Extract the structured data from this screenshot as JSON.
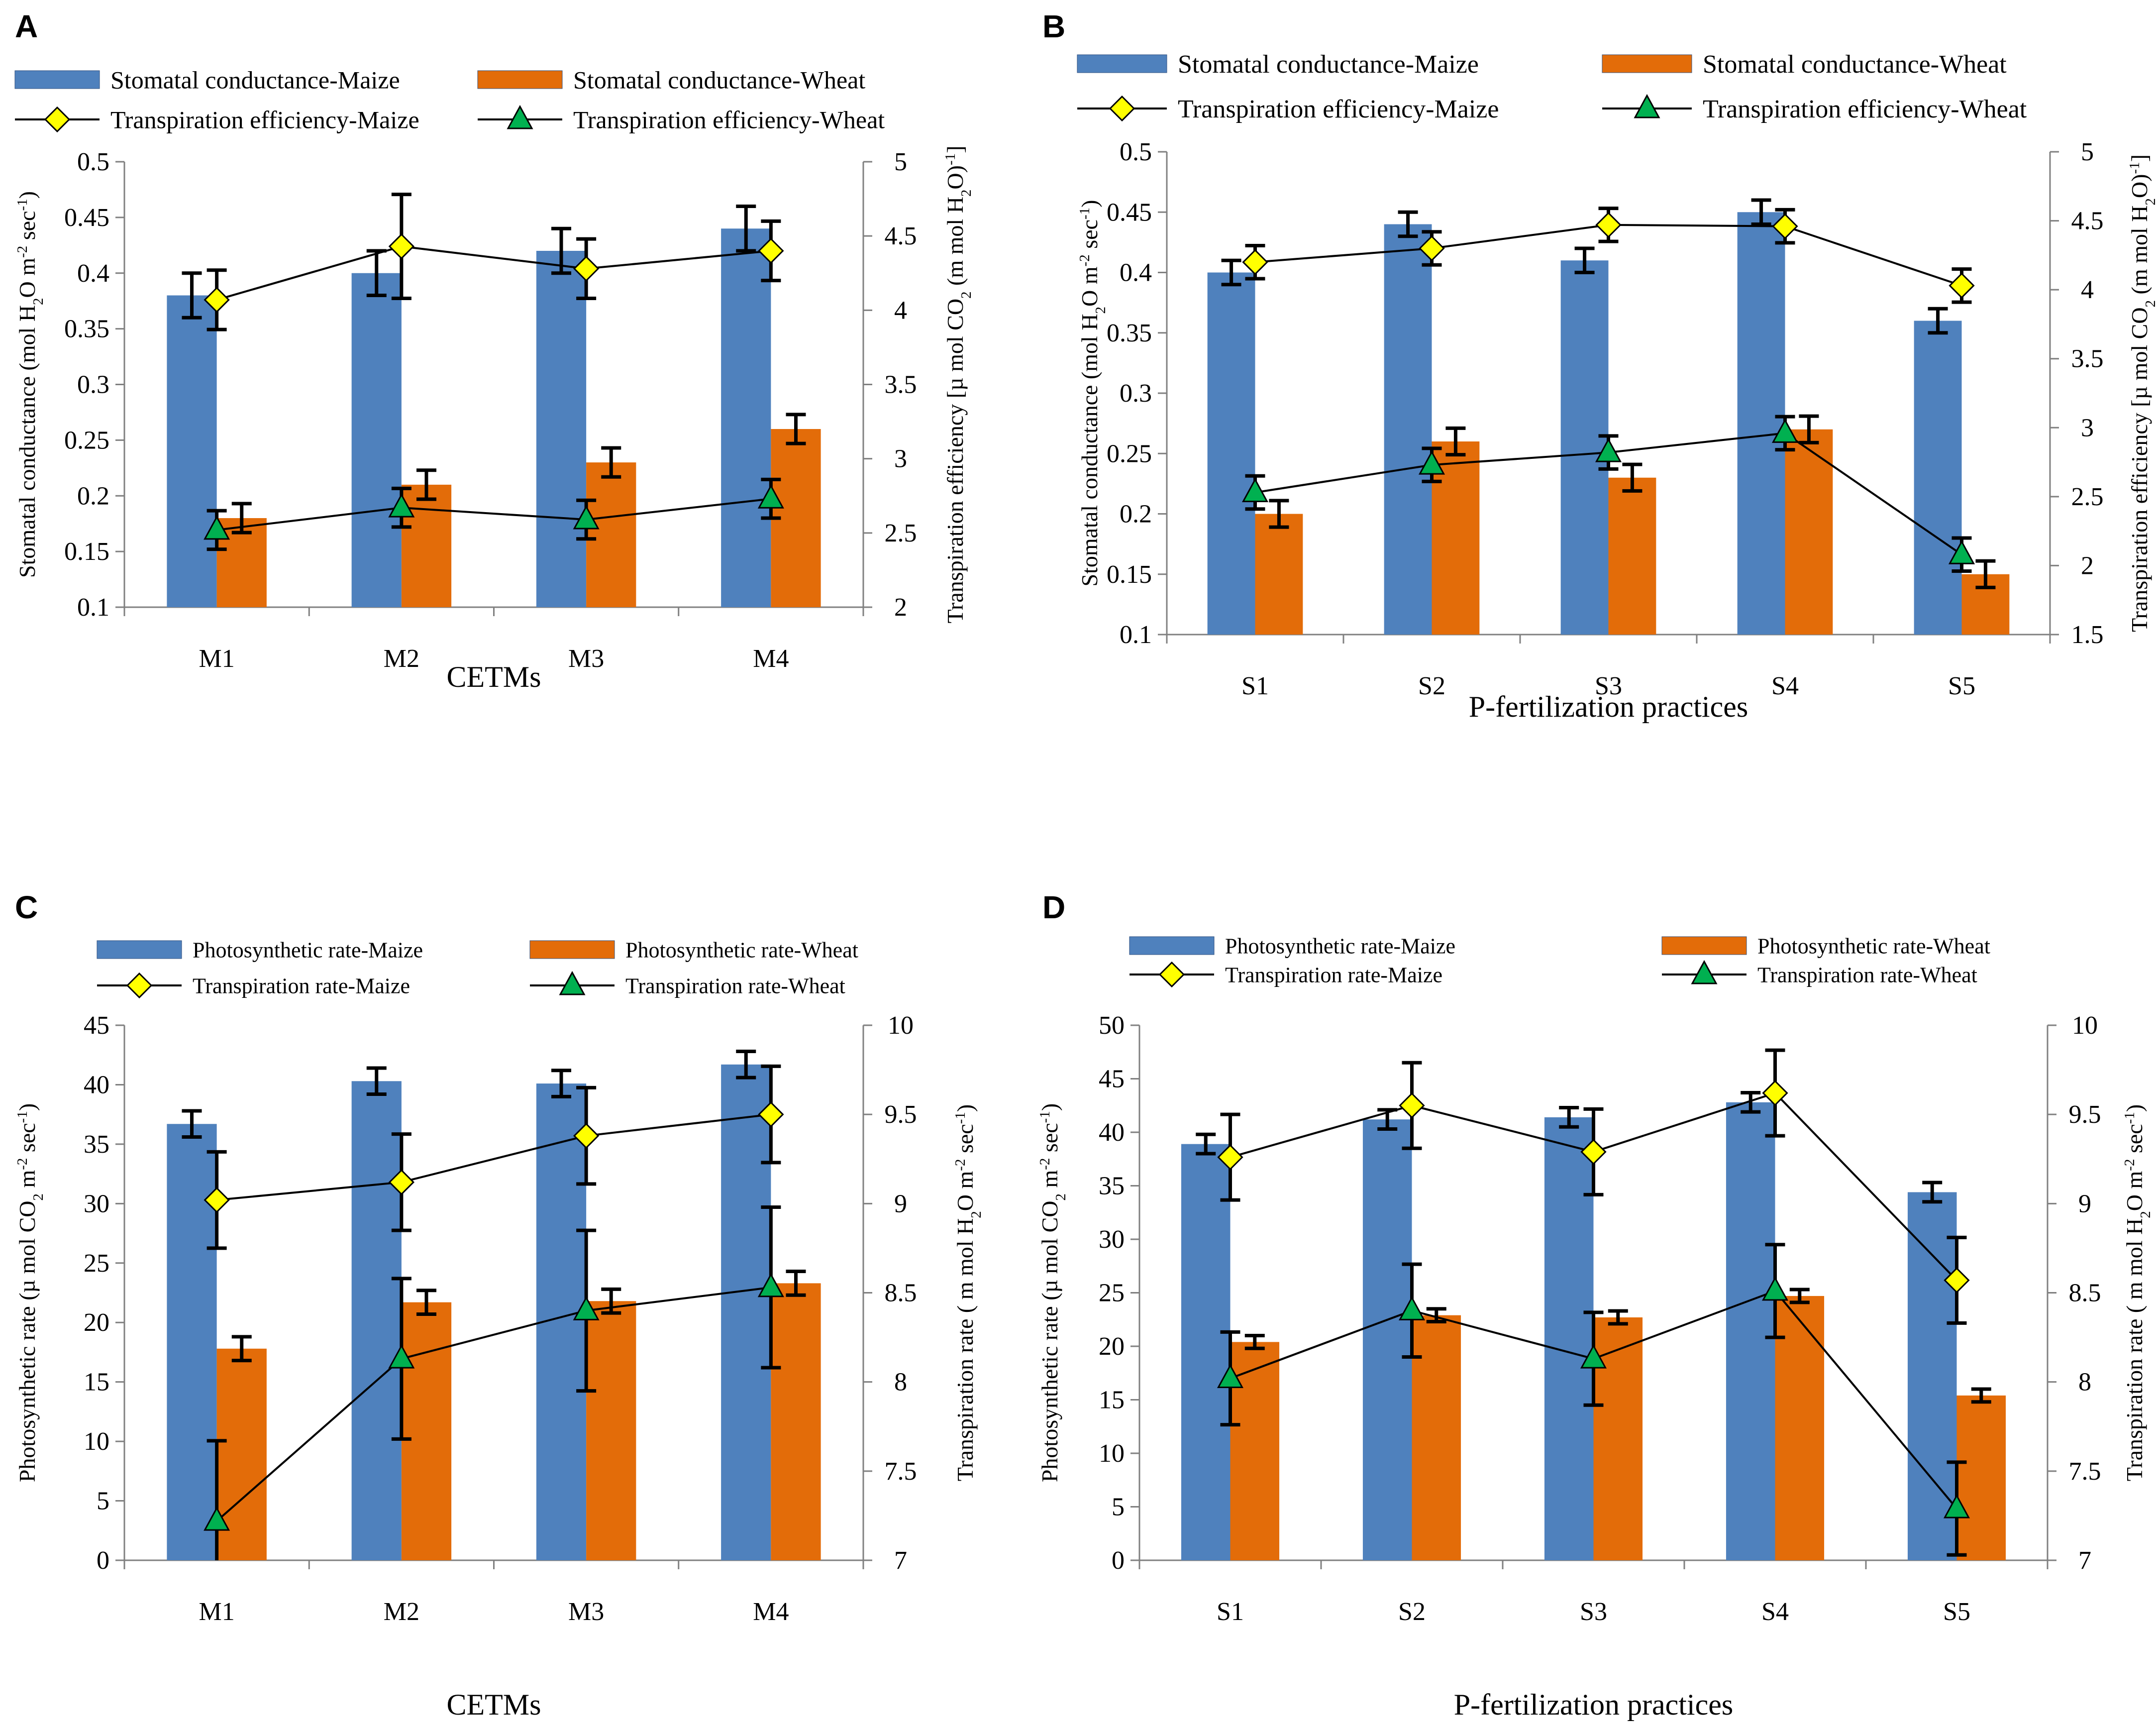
{
  "colors": {
    "maize_bar": "#4f81bd",
    "wheat_bar": "#e36c09",
    "maize_marker": "#ffff00",
    "wheat_marker": "#00b050",
    "axis": "#808080",
    "error_bar": "#000000"
  },
  "chart_data": [
    {
      "panel": "A",
      "type": "bar",
      "categories": [
        "M1",
        "M2",
        "M3",
        "M4"
      ],
      "xlabel": "CETMs",
      "ylabel": "Stomatal conductance (mol H2O m-2 sec-1)",
      "ylabel_parts": [
        "Stomatal conductance (mol H",
        "2",
        "O m",
        "-2",
        " sec",
        "-1",
        ")"
      ],
      "y2label": "Transpiration efficiency [μ mol CO2 (m mol H2O)-1]",
      "y2label_parts": [
        "Transpiration efficiency [µ mol CO",
        "2",
        " (m mol H",
        "2",
        "O)",
        "-1",
        "]"
      ],
      "ylim": [
        0.1,
        0.5
      ],
      "y2lim": [
        2,
        5
      ],
      "yticks": [
        "0.1",
        "0.15",
        "0.2",
        "0.25",
        "0.3",
        "0.35",
        "0.4",
        "0.45",
        "0.5"
      ],
      "y2ticks": [
        "2",
        "2.5",
        "3",
        "3.5",
        "4",
        "4.5",
        "5"
      ],
      "series": [
        {
          "name": "Stomatal conductance-Maize",
          "kind": "bar",
          "color": "#4f81bd",
          "values": [
            0.38,
            0.4,
            0.42,
            0.44
          ],
          "errors": [
            0.02,
            0.02,
            0.02,
            0.02
          ]
        },
        {
          "name": "Stomatal conductance-Wheat",
          "kind": "bar",
          "color": "#e36c09",
          "values": [
            0.18,
            0.21,
            0.23,
            0.26
          ],
          "errors": [
            0.013,
            0.013,
            0.013,
            0.013
          ]
        },
        {
          "name": "Transpiration efficiency-Maize",
          "kind": "line",
          "marker": "diamond",
          "axis": "right",
          "color": "#ffff00",
          "values": [
            4.07,
            4.43,
            4.28,
            4.4
          ],
          "errors": [
            0.2,
            0.35,
            0.2,
            0.2
          ]
        },
        {
          "name": "Transpiration efficiency-Wheat",
          "kind": "line",
          "marker": "triangle",
          "axis": "right",
          "color": "#00b050",
          "values": [
            2.52,
            2.67,
            2.59,
            2.73
          ],
          "errors": [
            0.13,
            0.13,
            0.13,
            0.13
          ]
        }
      ]
    },
    {
      "panel": "B",
      "type": "bar",
      "categories": [
        "S1",
        "S2",
        "S3",
        "S4",
        "S5"
      ],
      "xlabel": "P-fertilization practices",
      "ylabel": "Stomatal conductance (mol H2O m-2 sec-1)",
      "ylabel_parts": [
        "Stomatal conductance (mol H",
        "2",
        "O m",
        "-2",
        " sec",
        "-1",
        ")"
      ],
      "y2label": "Transpiration efficiency [μ mol CO2 (m mol H2O)-1]",
      "y2label_parts": [
        "Transpiration efficiency [µ mol CO",
        "2",
        " (m mol H",
        "2",
        "O)",
        "-1",
        "]"
      ],
      "ylim": [
        0.1,
        0.5
      ],
      "y2lim": [
        1.5,
        5
      ],
      "yticks": [
        "0.1",
        "0.15",
        "0.2",
        "0.25",
        "0.3",
        "0.35",
        "0.4",
        "0.45",
        "0.5"
      ],
      "y2ticks": [
        "1.5",
        "2",
        "2.5",
        "3",
        "3.5",
        "4",
        "4.5",
        "5"
      ],
      "series": [
        {
          "name": "Stomatal conductance-Maize",
          "kind": "bar",
          "color": "#4f81bd",
          "values": [
            0.4,
            0.44,
            0.41,
            0.45,
            0.36
          ],
          "errors": [
            0.01,
            0.01,
            0.01,
            0.01,
            0.01
          ]
        },
        {
          "name": "Stomatal conductance-Wheat",
          "kind": "bar",
          "color": "#e36c09",
          "values": [
            0.2,
            0.26,
            0.23,
            0.27,
            0.15
          ],
          "errors": [
            0.011,
            0.011,
            0.011,
            0.011,
            0.011
          ]
        },
        {
          "name": "Transpiration efficiency-Maize",
          "kind": "line",
          "marker": "diamond",
          "axis": "right",
          "color": "#ffff00",
          "values": [
            4.2,
            4.3,
            4.47,
            4.46,
            4.03
          ],
          "errors": [
            0.12,
            0.12,
            0.12,
            0.12,
            0.12
          ]
        },
        {
          "name": "Transpiration efficiency-Wheat",
          "kind": "line",
          "marker": "triangle",
          "axis": "right",
          "color": "#00b050",
          "values": [
            2.53,
            2.73,
            2.82,
            2.96,
            2.08
          ],
          "errors": [
            0.12,
            0.12,
            0.12,
            0.12,
            0.12
          ]
        }
      ]
    },
    {
      "panel": "C",
      "type": "bar",
      "categories": [
        "M1",
        "M2",
        "M3",
        "M4"
      ],
      "xlabel": "CETMs",
      "ylabel": "Photosynthetic rate (μ mol CO2 m-2 sec-1)",
      "ylabel_parts": [
        "Photosynthetic rate  (µ mol CO",
        "2",
        " m",
        "-2",
        " sec",
        "-1",
        ")"
      ],
      "y2label": "Transpiration rate ( m mol H2O m-2 sec-1)",
      "y2label_parts": [
        "Transpiration rate  ( m mol H",
        "2",
        "O m",
        "-2",
        " sec",
        "-1",
        ")"
      ],
      "ylim": [
        0,
        45
      ],
      "y2lim": [
        7,
        10
      ],
      "yticks": [
        "0",
        "5",
        "10",
        "15",
        "20",
        "25",
        "30",
        "35",
        "40",
        "45"
      ],
      "y2ticks": [
        "7",
        "7.5",
        "8",
        "8.5",
        "9",
        "9.5",
        "10"
      ],
      "series": [
        {
          "name": "Photosynthetic rate-Maize",
          "kind": "bar",
          "color": "#4f81bd",
          "values": [
            36.7,
            40.3,
            40.1,
            41.7
          ],
          "errors": [
            1.1,
            1.1,
            1.1,
            1.1
          ]
        },
        {
          "name": "Photosynthetic rate-Wheat",
          "kind": "bar",
          "color": "#e36c09",
          "values": [
            17.8,
            21.7,
            21.8,
            23.3
          ],
          "errors": [
            1.0,
            1.0,
            1.0,
            1.0
          ]
        },
        {
          "name": "Transpiration rate-Maize",
          "kind": "line",
          "marker": "diamond",
          "axis": "right",
          "color": "#ffff00",
          "values": [
            9.02,
            9.12,
            9.38,
            9.5
          ],
          "errors": [
            0.27,
            0.27,
            0.27,
            0.27
          ]
        },
        {
          "name": "Transpiration rate-Wheat",
          "kind": "line",
          "marker": "triangle",
          "axis": "right",
          "color": "#00b050",
          "values": [
            7.22,
            8.13,
            8.4,
            8.53
          ],
          "errors": [
            0.45,
            0.45,
            0.45,
            0.45
          ]
        }
      ]
    },
    {
      "panel": "D",
      "type": "bar",
      "categories": [
        "S1",
        "S2",
        "S3",
        "S4",
        "S5"
      ],
      "xlabel": "P-fertilization practices",
      "ylabel": "Photosynthetic rate (μ mol CO2 m-2 sec-1)",
      "ylabel_parts": [
        "Photosynthetic rate (µ mol CO",
        "2",
        " m",
        "-2",
        " sec",
        "-1",
        ")"
      ],
      "y2label": "Transpiration rate ( m mol H2O m-2 sec-1)",
      "y2label_parts": [
        "Transpiration rate  ( m mol H",
        "2",
        "O m",
        "-2",
        " sec",
        "-1",
        ")"
      ],
      "ylim": [
        0,
        50
      ],
      "y2lim": [
        7,
        10
      ],
      "yticks": [
        "0",
        "5",
        "10",
        "15",
        "20",
        "25",
        "30",
        "35",
        "40",
        "45",
        "50"
      ],
      "y2ticks": [
        "7",
        "7.5",
        "8",
        "8.5",
        "9",
        "9.5",
        "10"
      ],
      "series": [
        {
          "name": "Photosynthetic rate-Maize",
          "kind": "bar",
          "color": "#4f81bd",
          "values": [
            38.9,
            41.2,
            41.4,
            42.8,
            34.4
          ],
          "errors": [
            0.9,
            0.9,
            0.9,
            0.9,
            0.9
          ]
        },
        {
          "name": "Photosynthetic rate-Wheat",
          "kind": "bar",
          "color": "#e36c09",
          "values": [
            20.4,
            22.9,
            22.7,
            24.7,
            15.4
          ],
          "errors": [
            0.6,
            0.6,
            0.6,
            0.6,
            0.6
          ]
        },
        {
          "name": "Transpiration rate-Maize",
          "kind": "line",
          "marker": "diamond",
          "axis": "right",
          "color": "#ffff00",
          "values": [
            9.26,
            9.55,
            9.29,
            9.62,
            8.57
          ],
          "errors": [
            0.24,
            0.24,
            0.24,
            0.24,
            0.24
          ]
        },
        {
          "name": "Transpiration rate-Wheat",
          "kind": "line",
          "marker": "triangle",
          "axis": "right",
          "color": "#00b050",
          "values": [
            8.02,
            8.4,
            8.13,
            8.51,
            7.29
          ],
          "errors": [
            0.26,
            0.26,
            0.26,
            0.26,
            0.26
          ]
        }
      ]
    }
  ]
}
